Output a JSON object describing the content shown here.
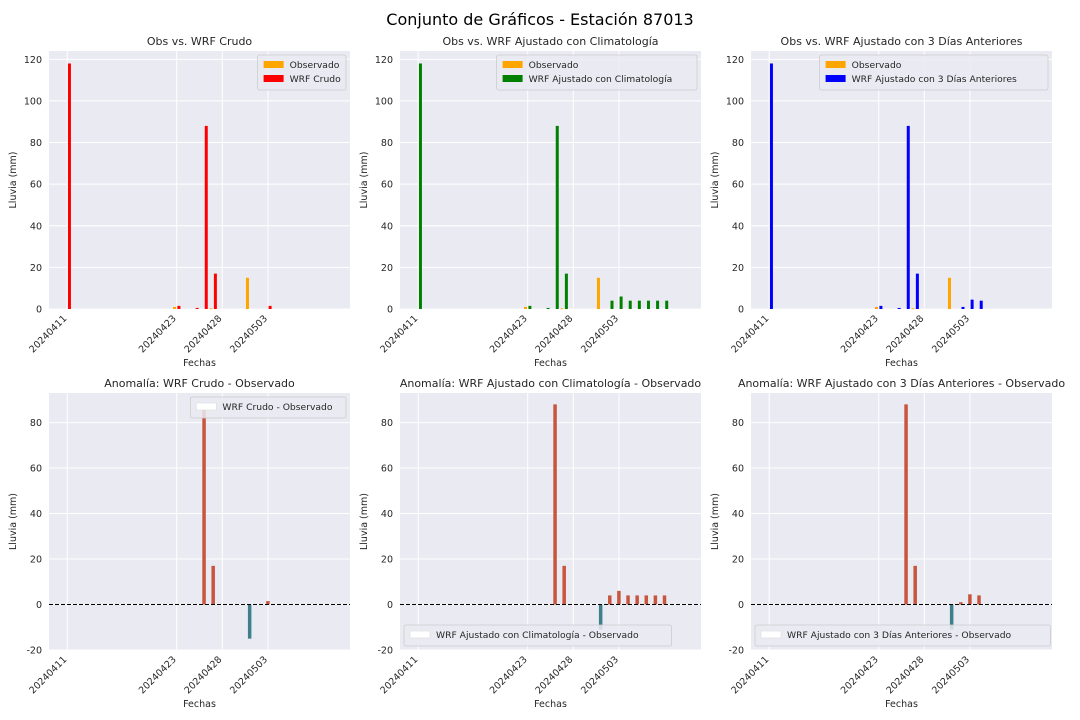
{
  "suptitle": "Conjunto de Gráficos - Estación 87013",
  "colors": {
    "background": "#eaeaf2",
    "grid": "#ffffff",
    "observado": "#ffa500",
    "wrf_crudo": "#ff0000",
    "wrf_clim": "#008000",
    "wrf_3d": "#0000ff",
    "anom_pos": "#c8553d",
    "anom_neg": "#3d7f8a"
  },
  "chart_data": [
    {
      "type": "bar",
      "title": "Obs vs. WRF Crudo",
      "xlabel": "Fechas",
      "ylabel": "Lluvia (mm)",
      "ylim": [
        0,
        124
      ],
      "yticks": [
        0,
        20,
        40,
        60,
        80,
        100,
        120
      ],
      "xlim": [
        20240409,
        20240512
      ],
      "xticks": [
        20240411,
        20240423,
        20240428,
        20240503
      ],
      "xticklabels": [
        "20240411",
        "20240423",
        "20240428",
        "20240503"
      ],
      "legend_position": "top-right",
      "series": [
        {
          "name": "Observado",
          "color_key": "observado",
          "x": [
            20240423,
            20240427,
            20240431
          ],
          "values": [
            1,
            0.3,
            15
          ]
        },
        {
          "name": "WRF Crudo",
          "color_key": "wrf_crudo",
          "x": [
            20240411,
            20240423,
            20240425,
            20240426,
            20240427,
            20240503
          ],
          "values": [
            118,
            1.5,
            0.5,
            88,
            17,
            1.5
          ]
        }
      ]
    },
    {
      "type": "bar",
      "title": "Obs vs. WRF Ajustado con Climatología",
      "xlabel": "Fechas",
      "ylabel": "Lluvia (mm)",
      "ylim": [
        0,
        124
      ],
      "yticks": [
        0,
        20,
        40,
        60,
        80,
        100,
        120
      ],
      "xlim": [
        20240409,
        20240512
      ],
      "xticks": [
        20240411,
        20240423,
        20240428,
        20240503
      ],
      "xticklabels": [
        "20240411",
        "20240423",
        "20240428",
        "20240503"
      ],
      "legend_position": "top-right",
      "series": [
        {
          "name": "Observado",
          "color_key": "observado",
          "x": [
            20240423,
            20240427,
            20240431
          ],
          "values": [
            1,
            0.3,
            15
          ]
        },
        {
          "name": "WRF Ajustado con Climatología",
          "color_key": "wrf_clim",
          "x": [
            20240411,
            20240423,
            20240425,
            20240426,
            20240427,
            20240502,
            20240503,
            20240504,
            20240505,
            20240506,
            20240507,
            20240508
          ],
          "values": [
            118,
            1.5,
            0.5,
            88,
            17,
            4,
            6,
            4,
            4,
            4,
            4,
            4
          ]
        }
      ]
    },
    {
      "type": "bar",
      "title": "Obs vs. WRF Ajustado con 3 Días Anteriores",
      "xlabel": "Fechas",
      "ylabel": "Lluvia (mm)",
      "ylim": [
        0,
        124
      ],
      "yticks": [
        0,
        20,
        40,
        60,
        80,
        100,
        120
      ],
      "xlim": [
        20240409,
        20240512
      ],
      "xticks": [
        20240411,
        20240423,
        20240428,
        20240503
      ],
      "xticklabels": [
        "20240411",
        "20240423",
        "20240428",
        "20240503"
      ],
      "legend_position": "top-right",
      "series": [
        {
          "name": "Observado",
          "color_key": "observado",
          "x": [
            20240423,
            20240427,
            20240431
          ],
          "values": [
            1,
            0.3,
            15
          ]
        },
        {
          "name": "WRF Ajustado con 3 Días Anteriores",
          "color_key": "wrf_3d",
          "x": [
            20240411,
            20240423,
            20240425,
            20240426,
            20240427,
            20240502,
            20240503,
            20240504
          ],
          "values": [
            118,
            1.5,
            0.5,
            88,
            17,
            1,
            4.5,
            4
          ]
        }
      ]
    },
    {
      "type": "bar",
      "title": "Anomalía: WRF Crudo - Observado",
      "xlabel": "Fechas",
      "ylabel": "Lluvia (mm)",
      "ylim": [
        -20,
        93
      ],
      "yticks": [
        -20,
        0,
        20,
        40,
        60,
        80
      ],
      "xlim": [
        20240409,
        20240512
      ],
      "xticks": [
        20240411,
        20240423,
        20240428,
        20240503
      ],
      "xticklabels": [
        "20240411",
        "20240423",
        "20240428",
        "20240503"
      ],
      "legend_position": "top-right",
      "zero_line": true,
      "series": [
        {
          "name": "WRF Crudo - Observado",
          "x": [
            20240426,
            20240427,
            20240431,
            20240503
          ],
          "values": [
            88,
            17,
            -15,
            1.5
          ]
        }
      ]
    },
    {
      "type": "bar",
      "title": "Anomalía: WRF Ajustado con Climatología - Observado",
      "xlabel": "Fechas",
      "ylabel": "Lluvia (mm)",
      "ylim": [
        -20,
        93
      ],
      "yticks": [
        -20,
        0,
        20,
        40,
        60,
        80
      ],
      "xlim": [
        20240409,
        20240512
      ],
      "xticks": [
        20240411,
        20240423,
        20240428,
        20240503
      ],
      "xticklabels": [
        "20240411",
        "20240423",
        "20240428",
        "20240503"
      ],
      "legend_position": "bottom-left",
      "zero_line": true,
      "series": [
        {
          "name": "WRF Ajustado con Climatología - Observado",
          "x": [
            20240426,
            20240427,
            20240431,
            20240502,
            20240503,
            20240504,
            20240505,
            20240506,
            20240507,
            20240508
          ],
          "values": [
            88,
            17,
            -11,
            4,
            6,
            4,
            4,
            4,
            4,
            4
          ]
        }
      ]
    },
    {
      "type": "bar",
      "title": "Anomalía: WRF Ajustado con 3 Días Anteriores - Observado",
      "xlabel": "Fechas",
      "ylabel": "Lluvia (mm)",
      "ylim": [
        -20,
        93
      ],
      "yticks": [
        -20,
        0,
        20,
        40,
        60,
        80
      ],
      "xlim": [
        20240409,
        20240512
      ],
      "xticks": [
        20240411,
        20240423,
        20240428,
        20240503
      ],
      "xticklabels": [
        "20240411",
        "20240423",
        "20240428",
        "20240503"
      ],
      "legend_position": "bottom-left",
      "zero_line": true,
      "series": [
        {
          "name": "WRF Ajustado con 3 Días Anteriores - Observado",
          "x": [
            20240426,
            20240427,
            20240431,
            20240502,
            20240503,
            20240504
          ],
          "values": [
            88,
            17,
            -11,
            1,
            4.5,
            4
          ]
        }
      ]
    }
  ]
}
